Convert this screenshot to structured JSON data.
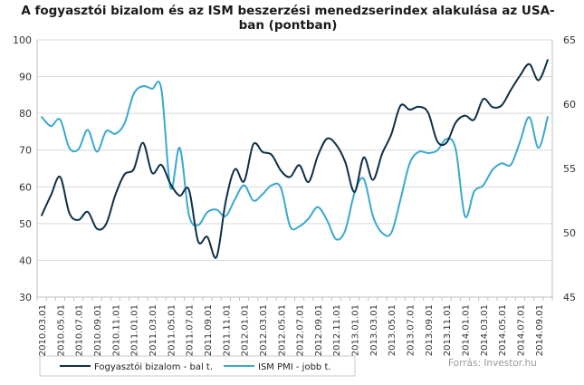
{
  "chart_data": {
    "type": "line",
    "title": "A fogyasztói bizalom és az ISM beszerzési menedzserindex  alakulása az USA-ban (pontban)",
    "title_lines": [
      "A fogyasztói bizalom és az ISM beszerzési menedzserindex  alakulása az USA-",
      "ban (pontban)"
    ],
    "x": [
      "2010.03.01",
      "2010.04.01",
      "2010.05.01",
      "2010.06.01",
      "2010.07.01",
      "2010.08.01",
      "2010.09.01",
      "2010.10.01",
      "2010.11.01",
      "2010.12.01",
      "2011.01.01",
      "2011.02.01",
      "2011.03.01",
      "2011.04.01",
      "2011.05.01",
      "2011.06.01",
      "2011.07.01",
      "2011.08.01",
      "2011.09.01",
      "2011.10.01",
      "2011.11.01",
      "2011.12.01",
      "2012.01.01",
      "2012.02.01",
      "2012.03.01",
      "2012.04.01",
      "2012.05.01",
      "2012.06.01",
      "2012.07.01",
      "2012.08.01",
      "2012.09.01",
      "2012.10.01",
      "2012.11.01",
      "2012.12.01",
      "2013.01.01",
      "2013.02.01",
      "2013.03.01",
      "2013.04.01",
      "2013.05.01",
      "2013.06.01",
      "2013.07.01",
      "2013.08.01",
      "2013.09.01",
      "2013.10.01",
      "2013.11.01",
      "2013.12.01",
      "2014.01.01",
      "2014.02.01",
      "2014.03.01",
      "2014.04.01",
      "2014.05.01",
      "2014.06.01",
      "2014.07.01",
      "2014.08.01",
      "2014.09.01",
      "2014.10.01"
    ],
    "x_tick_labels": [
      "2010.03.01",
      "2010.05.01",
      "2010.07.01",
      "2010.09.01",
      "2010.11.01",
      "2011.01.01",
      "2011.03.01",
      "2011.05.01",
      "2011.07.01",
      "2011.09.01",
      "2011.11.01",
      "2012.01.01",
      "2012.03.01",
      "2012.05.01",
      "2012.07.01",
      "2012.09.01",
      "2012.11.01",
      "2013.01.01",
      "2013.03.01",
      "2013.05.01",
      "2013.07.01",
      "2013.09.01",
      "2013.11.01",
      "2014.01.01",
      "2014.03.01",
      "2014.05.01",
      "2014.07.01",
      "2014.09.01"
    ],
    "series": [
      {
        "name": "Fogyasztói bizalom - bal t.",
        "axis": "left",
        "color": "#0d3048",
        "values": [
          52.3,
          57.7,
          62.7,
          52.9,
          51.0,
          53.2,
          48.6,
          49.9,
          57.8,
          63.4,
          64.8,
          72.0,
          63.8,
          66.0,
          60.8,
          57.6,
          59.2,
          45.2,
          46.4,
          40.9,
          56.0,
          64.8,
          61.5,
          71.6,
          69.5,
          68.7,
          64.4,
          62.7,
          65.9,
          61.3,
          68.4,
          73.1,
          71.5,
          66.7,
          58.6,
          68.0,
          61.9,
          69.0,
          74.3,
          82.1,
          81.0,
          81.8,
          80.2,
          72.4,
          72.0,
          77.5,
          79.4,
          78.3,
          83.9,
          81.7,
          82.2,
          86.4,
          90.3,
          93.4,
          89.0,
          94.5
        ]
      },
      {
        "name": "ISM PMI - jobb t.",
        "axis": "right",
        "color": "#3aa8cf",
        "values": [
          59.0,
          58.3,
          58.8,
          56.6,
          56.5,
          58.0,
          56.3,
          57.9,
          57.7,
          58.5,
          60.8,
          61.4,
          61.2,
          61.2,
          53.5,
          56.6,
          51.4,
          50.6,
          51.6,
          51.8,
          51.3,
          52.6,
          53.7,
          52.5,
          53.0,
          53.7,
          53.5,
          50.5,
          50.5,
          51.1,
          52.0,
          51.0,
          49.5,
          50.2,
          53.1,
          54.2,
          51.3,
          50.0,
          50.0,
          52.6,
          55.4,
          56.3,
          56.2,
          56.4,
          57.3,
          56.5,
          51.3,
          53.2,
          53.7,
          54.9,
          55.4,
          55.3,
          57.1,
          59.0,
          56.6,
          59.0
        ]
      }
    ],
    "y_left": {
      "range": [
        30,
        100
      ],
      "ticks": [
        "100",
        "90",
        "80",
        "70",
        "60",
        "50",
        "40",
        "30"
      ]
    },
    "y_right": {
      "range": [
        45,
        65
      ],
      "ticks": [
        "65",
        "60",
        "55",
        "50",
        "45"
      ]
    },
    "grid": "horizontal",
    "legend": "bottom-left",
    "source": "Forrás: Investor.hu"
  }
}
